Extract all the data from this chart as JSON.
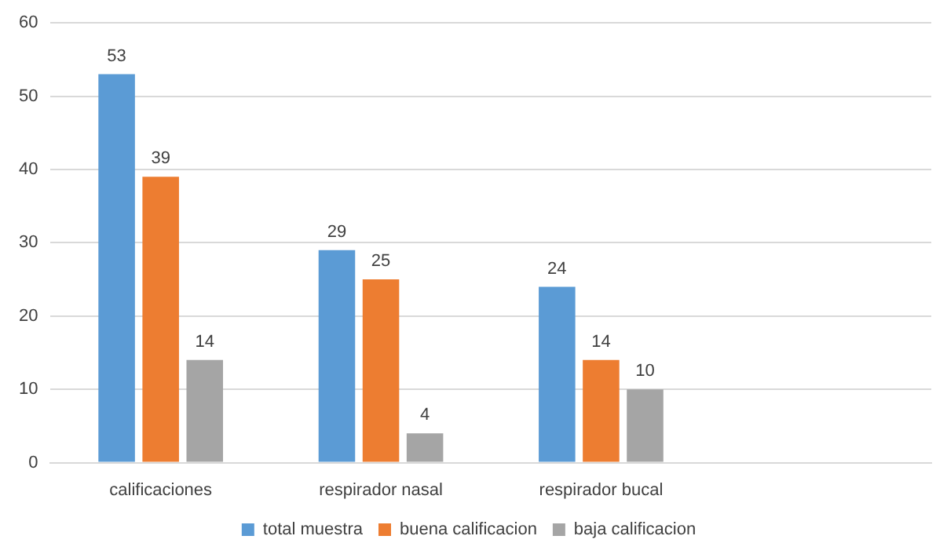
{
  "chart_data": {
    "type": "bar",
    "categories": [
      "calificaciones",
      "respirador nasal",
      "respirador bucal",
      null
    ],
    "series": [
      {
        "name": "total muestra",
        "color": "#5b9bd5",
        "values": [
          53,
          29,
          24,
          null
        ]
      },
      {
        "name": "buena calificacion",
        "color": "#ed7d31",
        "values": [
          39,
          25,
          14,
          null
        ]
      },
      {
        "name": "baja calificacion",
        "color": "#a5a5a5",
        "values": [
          14,
          4,
          10,
          null
        ]
      }
    ],
    "ylim": [
      0,
      60
    ],
    "yticks": [
      0,
      10,
      20,
      30,
      40,
      50,
      60
    ],
    "grid": "y",
    "legend": "bottom",
    "data_labels": true
  }
}
